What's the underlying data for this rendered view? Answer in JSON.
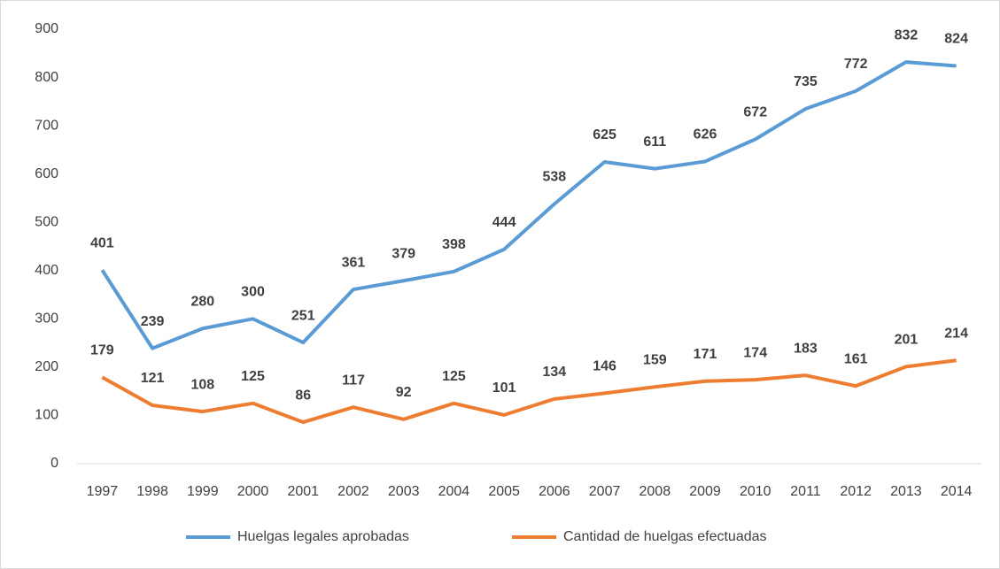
{
  "chart_data": {
    "type": "line",
    "categories": [
      "1997",
      "1998",
      "1999",
      "2000",
      "2001",
      "2002",
      "2003",
      "2004",
      "2005",
      "2006",
      "2007",
      "2008",
      "2009",
      "2010",
      "2011",
      "2012",
      "2013",
      "2014"
    ],
    "series": [
      {
        "name": "Huelgas legales aprobadas",
        "color": "#5b9bd5",
        "values": [
          401,
          239,
          280,
          300,
          251,
          361,
          379,
          398,
          444,
          538,
          625,
          611,
          626,
          672,
          735,
          772,
          832,
          824
        ]
      },
      {
        "name": "Cantidad de huelgas efectuadas",
        "color": "#ed7d31",
        "values": [
          179,
          121,
          108,
          125,
          86,
          117,
          92,
          125,
          101,
          134,
          146,
          159,
          171,
          174,
          183,
          161,
          201,
          214
        ]
      }
    ],
    "ylim": [
      0,
      900
    ],
    "yticks": [
      0,
      100,
      200,
      300,
      400,
      500,
      600,
      700,
      800,
      900
    ],
    "grid": false,
    "legend": "bottom",
    "data_labels": true
  }
}
